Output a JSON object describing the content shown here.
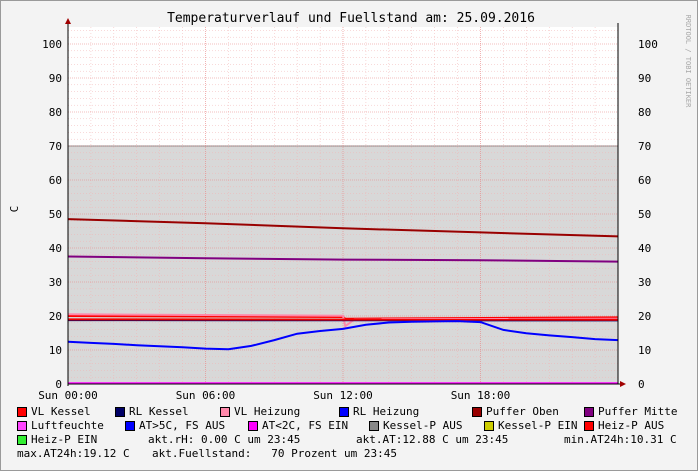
{
  "watermark": "RRDTOOL / TOBI OETIKER",
  "chart_data": {
    "type": "line",
    "title": "Temperaturverlauf und Fuellstand am: 25.09.2016",
    "ylabel": "C",
    "ylim": [
      0,
      105
    ],
    "xlim": [
      0,
      24
    ],
    "yticks": [
      0,
      10,
      20,
      30,
      40,
      50,
      60,
      70,
      80,
      90,
      100
    ],
    "xticks": [
      {
        "value": 0,
        "label": "Sun 00:00"
      },
      {
        "value": 6,
        "label": "Sun 06:00"
      },
      {
        "value": 12,
        "label": "Sun 12:00"
      },
      {
        "value": 18,
        "label": "Sun 18:00"
      }
    ],
    "fill_level": {
      "name": "Fuellstand",
      "value": 70,
      "color": "#d8d8d8"
    },
    "series": [
      {
        "name": "Puffer Oben",
        "color": "#990000",
        "x": [
          0,
          6,
          12,
          18,
          24
        ],
        "values": [
          48.5,
          47.3,
          45.8,
          44.6,
          43.4
        ]
      },
      {
        "name": "Puffer Mitte",
        "color": "#800080",
        "x": [
          0,
          6,
          12,
          18,
          24
        ],
        "values": [
          37.5,
          37.0,
          36.6,
          36.4,
          36.0
        ]
      },
      {
        "name": "VL Kessel",
        "color": "#ff0000",
        "x": [
          0,
          12,
          12.1,
          24
        ],
        "values": [
          20.0,
          19.7,
          19.2,
          19.6
        ]
      },
      {
        "name": "VL Heizung",
        "color": "#ff88aa",
        "x": [
          0,
          12,
          12.1,
          12.5,
          24
        ],
        "values": [
          20.5,
          20.1,
          17.0,
          19.0,
          19.2
        ]
      },
      {
        "name": "RL Kessel",
        "color": "#000066",
        "x": [
          0,
          24
        ],
        "values": [
          18.8,
          18.7
        ]
      },
      {
        "name": "Heiz-P AUS",
        "color": "#ee0000",
        "x": [
          0,
          24
        ],
        "values": [
          19.0,
          18.9
        ]
      },
      {
        "name": "RL Heizung",
        "color": "#0000ff",
        "x": [
          0,
          1,
          2,
          3,
          4,
          5,
          6,
          7,
          8,
          9,
          10,
          11,
          12,
          13,
          14,
          15,
          16,
          17,
          18,
          19,
          20,
          21,
          22,
          23,
          24
        ],
        "values": [
          12.4,
          12.1,
          11.8,
          11.4,
          11.1,
          10.8,
          10.4,
          10.2,
          11.2,
          12.9,
          14.8,
          15.6,
          16.2,
          17.4,
          18.1,
          18.3,
          18.4,
          18.5,
          18.2,
          15.9,
          14.9,
          14.3,
          13.8,
          13.2,
          12.9
        ]
      },
      {
        "name": "AT<2C, FS EIN",
        "color": "#ff00ff",
        "x": [
          0,
          24
        ],
        "values": [
          0.2,
          0.2
        ]
      }
    ],
    "legend": [
      {
        "label": "VL Kessel",
        "color": "#ff0000"
      },
      {
        "label": "RL Kessel",
        "color": "#000066"
      },
      {
        "label": "VL Heizung",
        "color": "#ff88aa"
      },
      {
        "label": "RL Heizung",
        "color": "#0000ff"
      },
      {
        "label": "Puffer Oben",
        "color": "#990000"
      },
      {
        "label": "Puffer Mitte",
        "color": "#800080"
      },
      {
        "label": "Luftfeuchte",
        "color": "#ff44ff"
      },
      {
        "label": "AT>5C, FS AUS",
        "color": "#0000ff"
      },
      {
        "label": "AT<2C, FS EIN",
        "color": "#ff00ff"
      },
      {
        "label": "Kessel-P AUS",
        "color": "#888888"
      },
      {
        "label": "Kessel-P EIN",
        "color": "#cccc00"
      },
      {
        "label": "Heiz-P AUS",
        "color": "#ff0000"
      },
      {
        "label": "Heiz-P EIN",
        "color": "#33ee33"
      }
    ],
    "info": {
      "rh": "akt.rH: 0.00 C um 23:45",
      "at": "akt.AT:12.88 C um 23:45",
      "min": "min.AT24h:10.31 C",
      "max": "max.AT24h:19.12 C",
      "fuell": "akt.Fuellstand:   70 Prozent um 23:45"
    }
  }
}
